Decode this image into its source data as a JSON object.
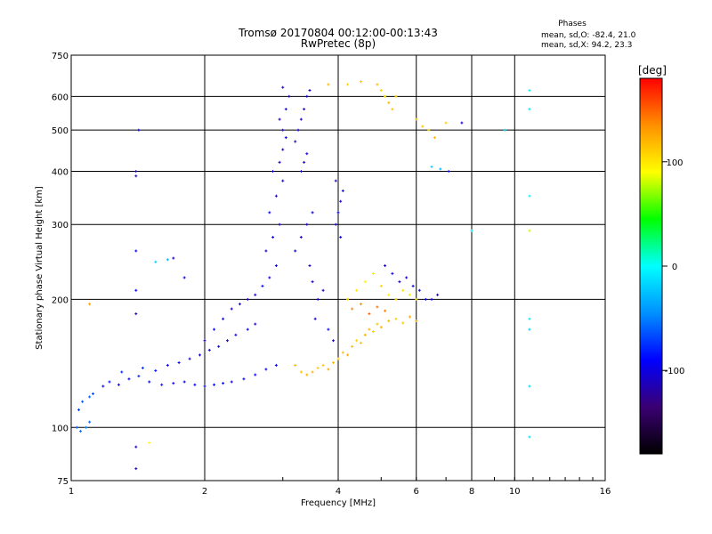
{
  "chart_data": {
    "type": "scatter",
    "title": "Tromsø 20170804 00:12:00-00:13:43",
    "subtitle": "RwPretec (8p)",
    "xlabel": "Frequency [MHz]",
    "ylabel": "Stationary phase Virtual Height [km]",
    "x_scale": "log",
    "y_scale": "log",
    "xlim": [
      1,
      16
    ],
    "ylim": [
      75,
      750
    ],
    "x_ticks": [
      "1",
      "2",
      "4",
      "6",
      "8",
      "10",
      "16"
    ],
    "y_ticks": [
      "75",
      "100",
      "200",
      "300",
      "400",
      "500",
      "600",
      "750"
    ],
    "grid": true,
    "phases": {
      "title": "Phases",
      "o_line": "mean, sd,O: -82.4, 21.0",
      "x_line": "mean, sd,X:  94.2, 23.3"
    },
    "colorbar": {
      "unit": "[deg]",
      "range": [
        -180,
        180
      ],
      "ticks": [
        "100",
        "0",
        "-100"
      ],
      "colors": [
        "#000000",
        "#3a0073",
        "#0000ff",
        "#0090ff",
        "#00ffff",
        "#00ff00",
        "#ffff00",
        "#ff9000",
        "#ff0000"
      ]
    },
    "series": [
      {
        "points": [
          [
            1.03,
            100,
            -60
          ],
          [
            1.05,
            98,
            -55
          ],
          [
            1.08,
            100,
            -50
          ],
          [
            1.1,
            103,
            -60
          ],
          [
            1.04,
            110,
            -70
          ],
          [
            1.06,
            115,
            -65
          ],
          [
            1.1,
            118,
            -60
          ],
          [
            1.12,
            120,
            -70
          ],
          [
            1.18,
            125,
            -90
          ],
          [
            1.22,
            128,
            -85
          ],
          [
            1.28,
            126,
            -90
          ],
          [
            1.35,
            130,
            -95
          ],
          [
            1.42,
            132,
            -80
          ],
          [
            1.5,
            128,
            -90
          ],
          [
            1.6,
            126,
            -85
          ],
          [
            1.7,
            127,
            -100
          ],
          [
            1.8,
            128,
            -95
          ],
          [
            1.9,
            126,
            -90
          ],
          [
            2.0,
            125,
            -85
          ],
          [
            2.1,
            126,
            -90
          ],
          [
            2.2,
            127,
            -95
          ],
          [
            2.3,
            128,
            -100
          ],
          [
            2.45,
            130,
            -90
          ],
          [
            2.6,
            133,
            -95
          ],
          [
            2.75,
            137,
            -100
          ],
          [
            2.9,
            140,
            -95
          ],
          [
            1.3,
            135,
            -80
          ],
          [
            1.45,
            138,
            -75
          ],
          [
            1.55,
            136,
            -85
          ],
          [
            1.65,
            140,
            -90
          ],
          [
            1.75,
            142,
            -95
          ],
          [
            1.85,
            145,
            -100
          ],
          [
            1.95,
            148,
            -105
          ],
          [
            2.05,
            152,
            -110
          ],
          [
            2.15,
            155,
            -95
          ],
          [
            2.25,
            160,
            -100
          ],
          [
            2.35,
            165,
            -105
          ],
          [
            2.5,
            170,
            -100
          ],
          [
            2.6,
            175,
            -110
          ],
          [
            2.0,
            160,
            -105
          ],
          [
            2.1,
            170,
            -100
          ],
          [
            2.2,
            180,
            -95
          ],
          [
            2.3,
            190,
            -110
          ],
          [
            2.4,
            195,
            -100
          ],
          [
            2.5,
            200,
            -105
          ],
          [
            2.6,
            205,
            -110
          ],
          [
            2.7,
            215,
            -100
          ],
          [
            2.8,
            225,
            -105
          ],
          [
            2.9,
            240,
            -100
          ],
          [
            2.75,
            260,
            -110
          ],
          [
            2.85,
            280,
            -95
          ],
          [
            2.95,
            300,
            -105
          ],
          [
            2.8,
            320,
            -100
          ],
          [
            2.9,
            350,
            -110
          ],
          [
            3.0,
            380,
            -100
          ],
          [
            2.85,
            400,
            -90
          ],
          [
            2.95,
            420,
            -110
          ],
          [
            3.0,
            450,
            -105
          ],
          [
            3.05,
            480,
            -100
          ],
          [
            3.0,
            500,
            -110
          ],
          [
            2.95,
            530,
            -105
          ],
          [
            3.05,
            560,
            -100
          ],
          [
            3.1,
            600,
            -115
          ],
          [
            3.0,
            630,
            -105
          ],
          [
            3.2,
            470,
            -110
          ],
          [
            3.25,
            500,
            -100
          ],
          [
            3.3,
            530,
            -110
          ],
          [
            3.35,
            560,
            -105
          ],
          [
            3.4,
            600,
            -100
          ],
          [
            3.45,
            620,
            -110
          ],
          [
            3.3,
            400,
            -100
          ],
          [
            3.35,
            420,
            -110
          ],
          [
            3.4,
            440,
            -105
          ],
          [
            3.2,
            260,
            -100
          ],
          [
            3.3,
            280,
            -110
          ],
          [
            3.4,
            300,
            -105
          ],
          [
            3.5,
            320,
            -100
          ],
          [
            3.45,
            240,
            -110
          ],
          [
            3.5,
            220,
            -105
          ],
          [
            3.6,
            200,
            -100
          ],
          [
            3.7,
            210,
            -110
          ],
          [
            3.55,
            180,
            -105
          ],
          [
            3.8,
            170,
            -100
          ],
          [
            3.9,
            160,
            -110
          ],
          [
            3.95,
            300,
            -100
          ],
          [
            4.0,
            320,
            -95
          ],
          [
            4.05,
            340,
            -105
          ],
          [
            4.1,
            360,
            -100
          ],
          [
            3.95,
            380,
            -110
          ],
          [
            4.05,
            280,
            -100
          ],
          [
            3.2,
            140,
            120
          ],
          [
            3.3,
            135,
            115
          ],
          [
            3.4,
            133,
            125
          ],
          [
            3.5,
            135,
            120
          ],
          [
            3.6,
            138,
            110
          ],
          [
            3.7,
            140,
            115
          ],
          [
            3.8,
            137,
            125
          ],
          [
            3.9,
            142,
            120
          ],
          [
            4.0,
            145,
            110
          ],
          [
            4.1,
            150,
            115
          ],
          [
            4.2,
            148,
            125
          ],
          [
            4.3,
            155,
            120
          ],
          [
            4.4,
            160,
            110
          ],
          [
            4.5,
            158,
            115
          ],
          [
            4.6,
            165,
            125
          ],
          [
            4.7,
            170,
            120
          ],
          [
            4.8,
            168,
            110
          ],
          [
            4.9,
            175,
            115
          ],
          [
            5.0,
            172,
            125
          ],
          [
            5.2,
            178,
            120
          ],
          [
            5.4,
            180,
            110
          ],
          [
            5.6,
            176,
            115
          ],
          [
            5.8,
            182,
            125
          ],
          [
            6.0,
            178,
            120
          ],
          [
            4.3,
            190,
            140
          ],
          [
            4.5,
            195,
            135
          ],
          [
            4.7,
            185,
            150
          ],
          [
            4.9,
            192,
            145
          ],
          [
            5.1,
            188,
            140
          ],
          [
            4.2,
            200,
            110
          ],
          [
            4.4,
            210,
            100
          ],
          [
            4.6,
            220,
            95
          ],
          [
            4.8,
            230,
            100
          ],
          [
            5.0,
            215,
            110
          ],
          [
            5.2,
            205,
            100
          ],
          [
            5.4,
            200,
            110
          ],
          [
            5.6,
            210,
            105
          ],
          [
            5.8,
            205,
            100
          ],
          [
            6.0,
            200,
            110
          ],
          [
            5.5,
            220,
            -110
          ],
          [
            5.7,
            225,
            -105
          ],
          [
            5.9,
            215,
            -100
          ],
          [
            6.1,
            210,
            -110
          ],
          [
            5.3,
            230,
            -100
          ],
          [
            5.1,
            240,
            -105
          ],
          [
            6.3,
            200,
            -100
          ],
          [
            6.5,
            200,
            -95
          ],
          [
            6.7,
            205,
            -110
          ],
          [
            5.0,
            620,
            110
          ],
          [
            5.1,
            600,
            105
          ],
          [
            5.2,
            580,
            120
          ],
          [
            5.3,
            560,
            115
          ],
          [
            5.4,
            600,
            110
          ],
          [
            4.9,
            640,
            120
          ],
          [
            6.0,
            530,
            110
          ],
          [
            6.2,
            510,
            115
          ],
          [
            6.4,
            500,
            105
          ],
          [
            6.6,
            480,
            120
          ],
          [
            7.0,
            520,
            110
          ],
          [
            4.5,
            650,
            115
          ],
          [
            4.2,
            640,
            110
          ],
          [
            3.8,
            640,
            120
          ],
          [
            6.5,
            410,
            -20
          ],
          [
            6.8,
            405,
            -30
          ],
          [
            7.1,
            400,
            -90
          ],
          [
            7.6,
            520,
            -110
          ],
          [
            9.5,
            500,
            -20
          ],
          [
            8.0,
            290,
            -10
          ],
          [
            10.8,
            620,
            -5
          ],
          [
            10.8,
            560,
            -10
          ],
          [
            10.8,
            350,
            -5
          ],
          [
            10.8,
            290,
            80
          ],
          [
            10.8,
            180,
            -10
          ],
          [
            10.8,
            170,
            -20
          ],
          [
            10.8,
            125,
            -15
          ],
          [
            10.8,
            95,
            -10
          ],
          [
            1.4,
            400,
            -110
          ],
          [
            1.4,
            390,
            -120
          ],
          [
            1.42,
            500,
            -100
          ],
          [
            1.4,
            260,
            -100
          ],
          [
            1.4,
            210,
            -90
          ],
          [
            1.4,
            185,
            -120
          ],
          [
            1.55,
            245,
            -20
          ],
          [
            1.65,
            248,
            -30
          ],
          [
            1.7,
            250,
            -110
          ],
          [
            1.8,
            225,
            -90
          ],
          [
            1.1,
            195,
            130
          ],
          [
            1.4,
            90,
            -110
          ],
          [
            1.5,
            92,
            90
          ],
          [
            1.4,
            80,
            -120
          ]
        ]
      }
    ]
  }
}
